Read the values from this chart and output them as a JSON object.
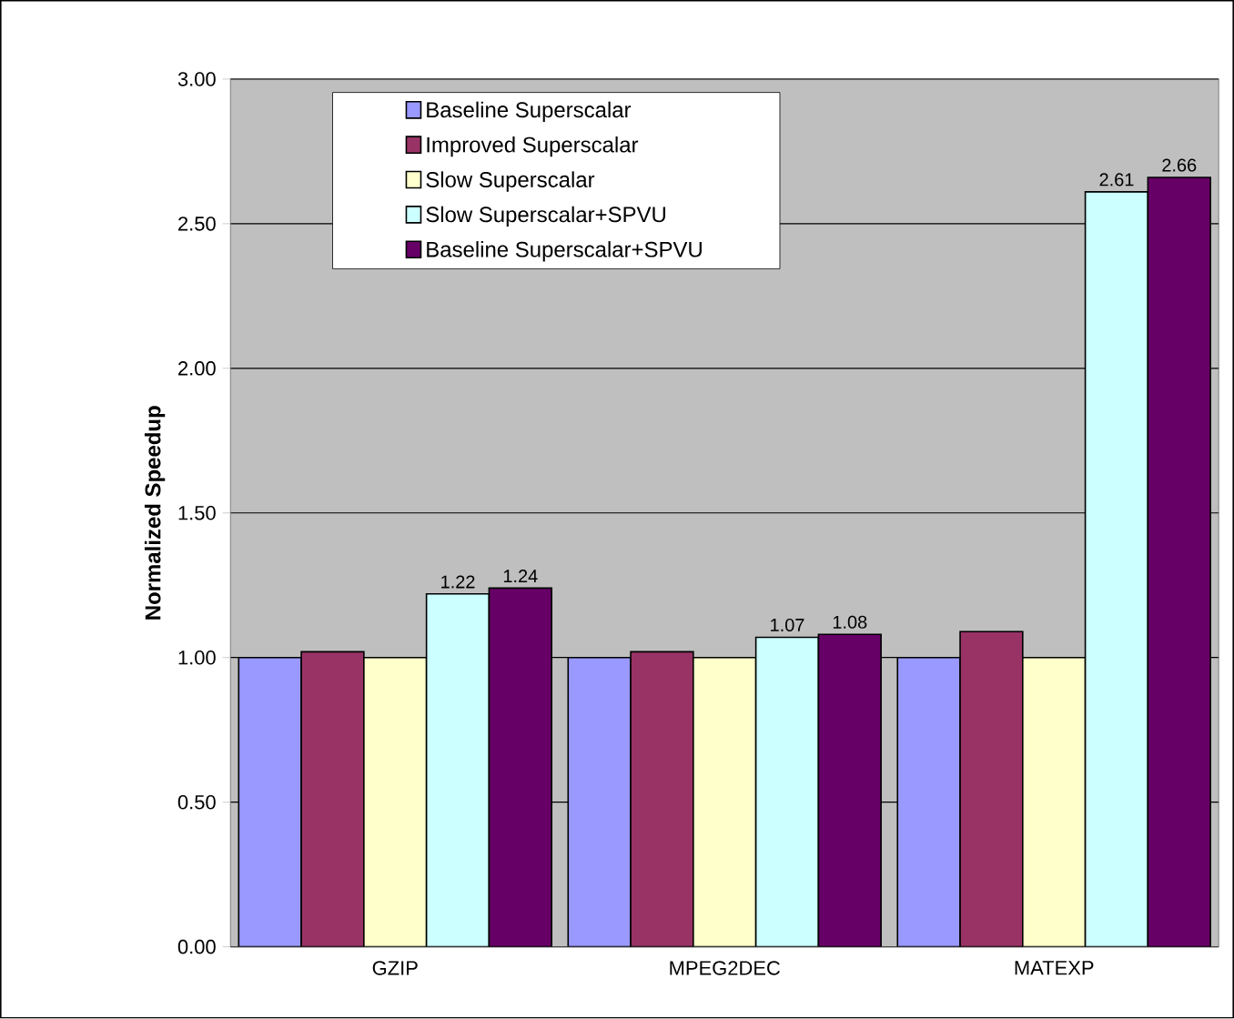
{
  "chart_data": {
    "type": "bar",
    "ylabel": "Normalized Speedup",
    "categories": [
      "GZIP",
      "MPEG2DEC",
      "MATEXP"
    ],
    "series": [
      {
        "name": "Baseline Superscalar",
        "color": "#9999ff",
        "values": [
          1.0,
          1.0,
          1.0
        ]
      },
      {
        "name": "Improved Superscalar",
        "color": "#993366",
        "values": [
          1.02,
          1.02,
          1.09
        ]
      },
      {
        "name": "Slow  Superscalar",
        "color": "#ffffcc",
        "values": [
          1.0,
          1.0,
          1.0
        ]
      },
      {
        "name": "Slow  Superscalar+SPVU",
        "color": "#ccffff",
        "values": [
          1.22,
          1.07,
          2.61
        ],
        "value_labels": [
          "1.22",
          "1.07",
          "2.61"
        ]
      },
      {
        "name": "Baseline Superscalar+SPVU",
        "color": "#660066",
        "values": [
          1.24,
          1.08,
          2.66
        ],
        "value_labels": [
          "1.24",
          "1.08",
          "2.66"
        ]
      }
    ],
    "ylim": [
      0,
      3
    ],
    "yticks": [
      {
        "value": 0,
        "label": "0.00"
      },
      {
        "value": 0.5,
        "label": "0.50"
      },
      {
        "value": 1,
        "label": "1.00"
      },
      {
        "value": 1.5,
        "label": "1.50"
      },
      {
        "value": 2,
        "label": "2.00"
      },
      {
        "value": 2.5,
        "label": "2.50"
      },
      {
        "value": 3,
        "label": "3.00"
      }
    ],
    "grid": "y",
    "legend": "top"
  }
}
